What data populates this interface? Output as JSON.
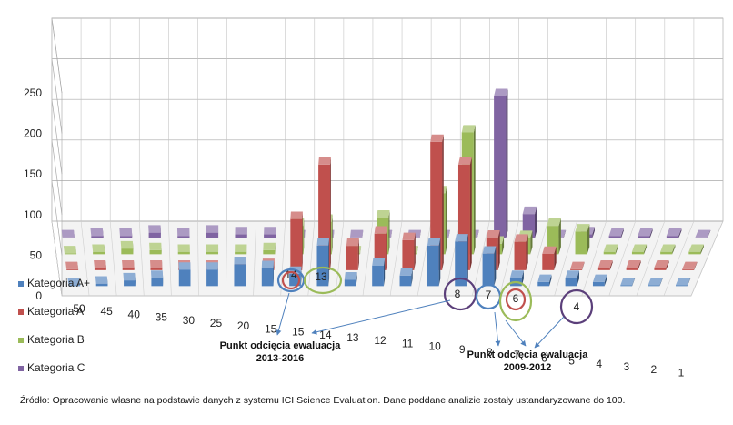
{
  "chart_data": {
    "type": "bar",
    "subtype": "3d-clustered-column",
    "categories": [
      "50",
      "45",
      "40",
      "35",
      "30",
      "25",
      "20",
      "15",
      "15",
      "14",
      "13",
      "12",
      "11",
      "10",
      "9",
      "8",
      "7",
      "6",
      "5",
      "4",
      "3",
      "2",
      "1"
    ],
    "series": [
      {
        "name": "Kategoria A+",
        "color": "#4f81bd",
        "values": [
          0,
          3,
          7,
          10,
          20,
          20,
          27,
          22,
          15,
          50,
          8,
          25,
          13,
          50,
          55,
          40,
          10,
          5,
          10,
          5,
          0,
          0,
          0
        ]
      },
      {
        "name": "Kategoria A",
        "color": "#c0504d",
        "values": [
          0,
          3,
          3,
          3,
          3,
          3,
          3,
          5,
          63,
          130,
          30,
          45,
          37,
          158,
          130,
          40,
          35,
          20,
          0,
          3,
          3,
          3,
          0
        ]
      },
      {
        "name": "Kategoria B",
        "color": "#9bbb59",
        "values": [
          0,
          3,
          7,
          5,
          3,
          3,
          3,
          5,
          35,
          40,
          0,
          45,
          0,
          75,
          150,
          13,
          20,
          35,
          28,
          3,
          3,
          3,
          3
        ]
      },
      {
        "name": "Kategoria C",
        "color": "#8064a2",
        "values": [
          0,
          3,
          3,
          7,
          3,
          7,
          5,
          5,
          0,
          0,
          0,
          0,
          0,
          0,
          0,
          175,
          30,
          0,
          5,
          3,
          3,
          3,
          0
        ]
      }
    ],
    "ylim": [
      0,
      250
    ],
    "yticks": [
      "0",
      "50",
      "100",
      "150",
      "200",
      "250"
    ],
    "grid": true,
    "legend_position": "bottom-left",
    "highlights": [
      {
        "label": "14",
        "color": "#4f81bd"
      },
      {
        "label": "14",
        "color": "#c0504d"
      },
      {
        "label": "13",
        "color": "#9bbb59"
      },
      {
        "label": "8",
        "color": "#5b3f7a"
      },
      {
        "label": "7",
        "color": "#4f81bd"
      },
      {
        "label": "6",
        "color": "#9bbb59"
      },
      {
        "label": "6",
        "color": "#c0504d"
      },
      {
        "label": "4",
        "color": "#5b3f7a"
      }
    ],
    "annotations": [
      {
        "line1": "Punkt odcięcia ewaluacja",
        "line2": "2013-2016"
      },
      {
        "line1": "Punkt odcięcia ewaluacja",
        "line2": "2009-2012"
      }
    ]
  },
  "source_note": "Źródło: Opracowanie własne na podstawie danych z systemu ICI Science Evaluation. Dane poddane analizie zostały ustandaryzowane do 100."
}
